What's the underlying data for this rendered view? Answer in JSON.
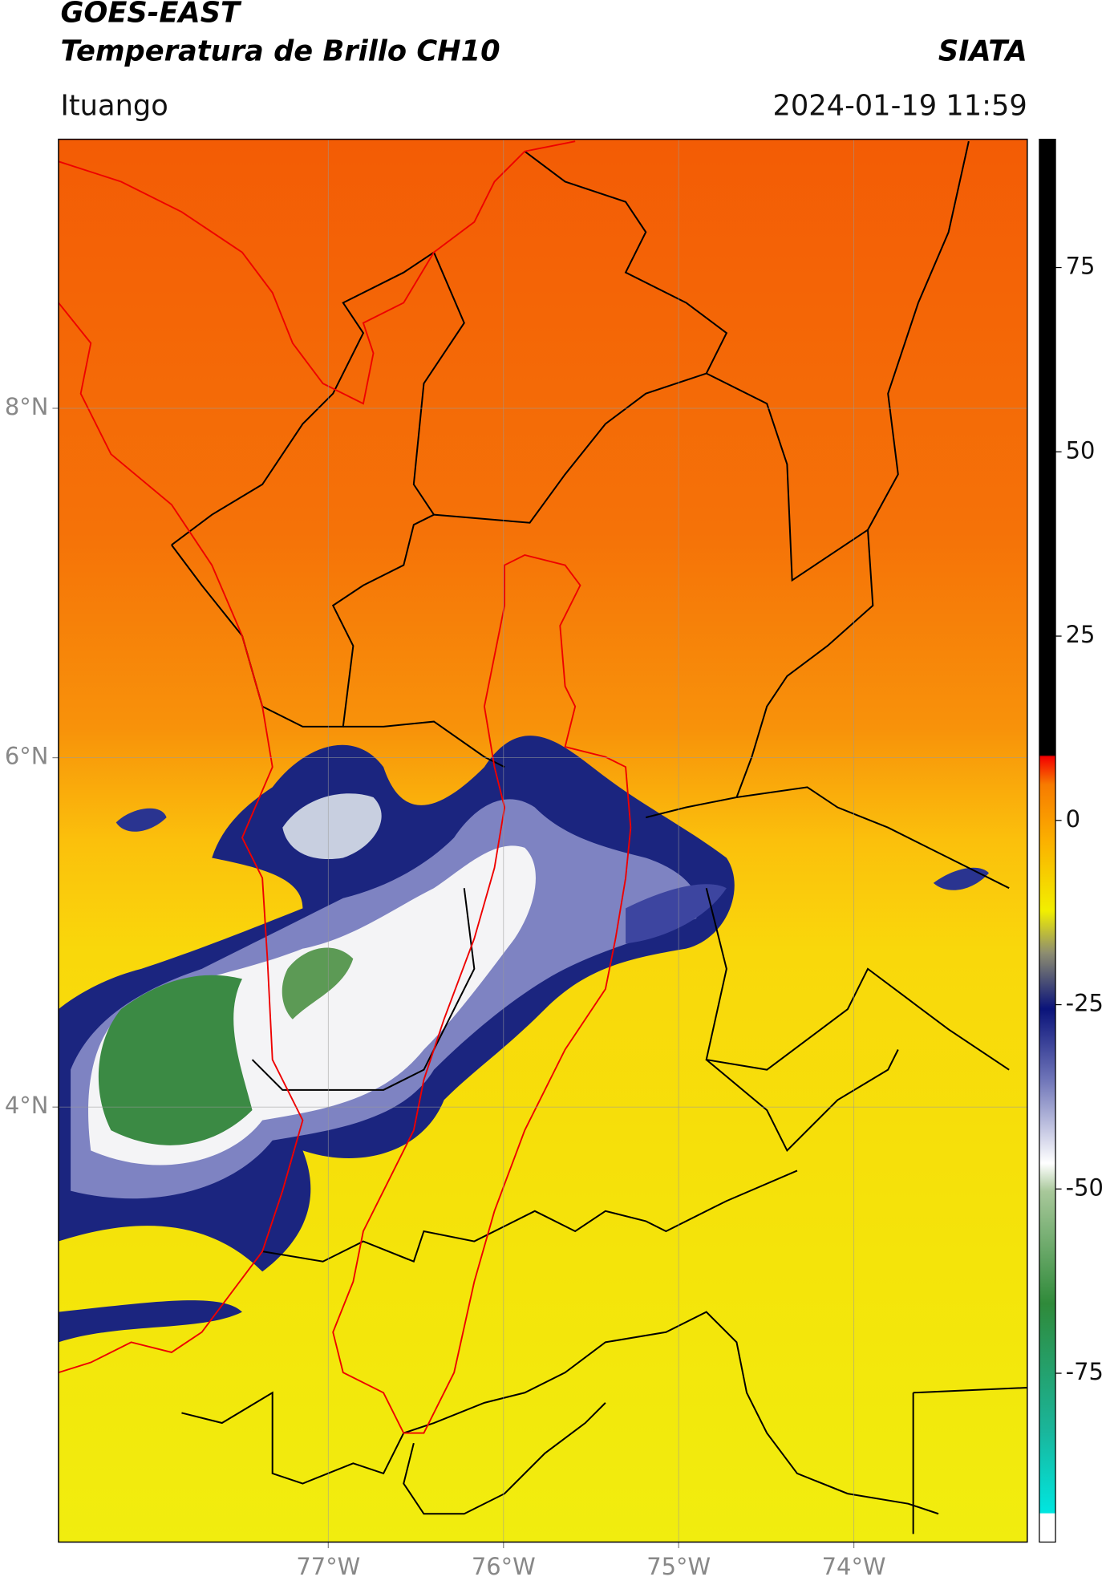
{
  "header": {
    "satellite": "GOES-EAST",
    "product": "Temperatura de Brillo CH10",
    "agency": "SIATA",
    "place": "Ituango",
    "datetime": "2024-01-19 11:59"
  },
  "map": {
    "xlim": [
      -78.54,
      -73.01
    ],
    "ylim": [
      1.51,
      9.54
    ],
    "xticks": [
      {
        "value": -77,
        "label": "77°W"
      },
      {
        "value": -76,
        "label": "76°W"
      },
      {
        "value": -75,
        "label": "75°W"
      },
      {
        "value": -74,
        "label": "74°W"
      }
    ],
    "yticks": [
      {
        "value": 8,
        "label": "8°N"
      },
      {
        "value": 6,
        "label": "6°N"
      },
      {
        "value": 4,
        "label": "4°N"
      }
    ],
    "grid": true
  },
  "colorbar": {
    "lim": [
      -97.9,
      92.4
    ],
    "ticks": [
      75,
      50,
      25,
      0,
      -25,
      -50,
      -75
    ]
  }
}
